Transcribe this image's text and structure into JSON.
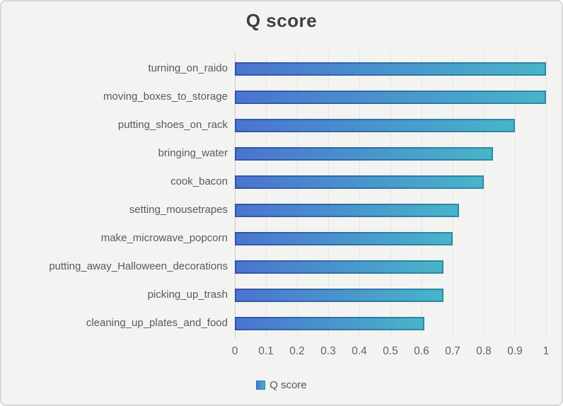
{
  "window": {
    "background_color": "#f3f3f2",
    "border_color": "#d7d7d7"
  },
  "chart_data": {
    "type": "bar",
    "orientation": "horizontal",
    "title": "Q score",
    "series_name": "Q score",
    "categories": [
      "turning_on_raido",
      "moving_boxes_to_storage",
      "putting_shoes_on_rack",
      "bringing_water",
      "cook_bacon",
      "setting_mousetrapes",
      "make_microwave_popcorn",
      "putting_away_Halloween_decorations",
      "picking_up_trash",
      "cleaning_up_plates_and_food"
    ],
    "values": [
      1.0,
      1.0,
      0.9,
      0.83,
      0.8,
      0.72,
      0.7,
      0.67,
      0.67,
      0.61
    ],
    "xlim": [
      0,
      1
    ],
    "x_ticks": [
      "0",
      "0.1",
      "0.2",
      "0.3",
      "0.4",
      "0.5",
      "0.6",
      "0.7",
      "0.8",
      "0.9",
      "1"
    ],
    "grid": true,
    "legend_position": "bottom",
    "colors": {
      "bar_fill_gradient_start": "#4a74d0",
      "bar_fill_gradient_end": "#48b4c9",
      "bar_border_gradient_start": "#3454a6",
      "bar_border_gradient_end": "#2c8ba4",
      "grid_color": "#e4e4e4",
      "zero_line_color": "#c9c9c9",
      "title_color": "#3f3f3f",
      "category_label_color": "#595959",
      "tick_label_color": "#636363",
      "legend_text_color": "#555555"
    }
  },
  "legend": {
    "label": "Q score"
  }
}
